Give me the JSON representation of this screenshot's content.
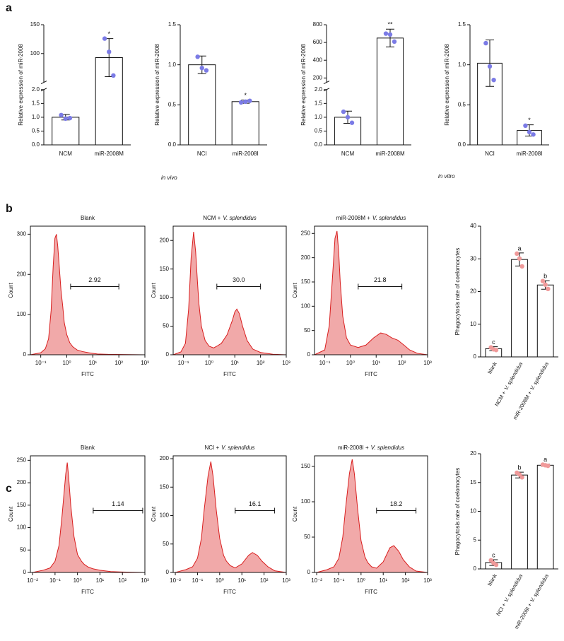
{
  "panel_labels": [
    "a",
    "b",
    "c"
  ],
  "condition_labels": [
    "in vivo",
    "in vitro"
  ],
  "chart_data": [
    {
      "type": "bar",
      "ylabel": "Relative expression of miR-2008",
      "categories": [
        "NCM",
        "miR-2008M"
      ],
      "values": [
        1.0,
        93
      ],
      "errors": [
        0.1,
        33
      ],
      "points": [
        [
          1.08,
          0.95,
          0.97
        ],
        [
          126,
          103,
          62
        ]
      ],
      "annotations": [
        null,
        "*"
      ],
      "ysegments": [
        {
          "ylim": [
            0,
            2
          ],
          "yticks": [
            {
              "value": 0,
              "label": "0.0"
            },
            0.5,
            {
              "value": 1,
              "label": "1.0"
            },
            1.5,
            {
              "value": 2,
              "label": "2.0"
            }
          ]
        },
        {
          "ylim": [
            50,
            150
          ],
          "yticks": [
            100,
            150
          ]
        }
      ],
      "bar_color": "#ffffff",
      "point_color": "#7b7be6"
    },
    {
      "type": "bar",
      "ylabel": "Relative expression of miR-2008",
      "categories": [
        "NCI",
        "miR-2008I"
      ],
      "values": [
        1.0,
        0.54
      ],
      "errors": [
        0.11,
        0.02
      ],
      "points": [
        [
          1.1,
          0.96,
          0.93
        ],
        [
          0.53,
          0.54,
          0.55
        ]
      ],
      "annotations": [
        null,
        "*"
      ],
      "ylim": [
        0,
        1.5
      ],
      "yticks": [
        {
          "value": 0,
          "label": "0.0"
        },
        0.5,
        {
          "value": 1,
          "label": "1.0"
        },
        1.5
      ],
      "bar_color": "#ffffff",
      "point_color": "#7b7be6"
    },
    {
      "type": "bar",
      "ylabel": "Relative expression of miR-2008",
      "categories": [
        "NCM",
        "miR-2008M"
      ],
      "values": [
        1.0,
        650
      ],
      "errors": [
        0.22,
        100
      ],
      "points": [
        [
          1.2,
          1.0,
          0.8
        ],
        [
          700,
          690,
          610
        ]
      ],
      "annotations": [
        null,
        "**"
      ],
      "ysegments": [
        {
          "ylim": [
            0,
            2
          ],
          "yticks": [
            {
              "value": 0,
              "label": "0.0"
            },
            0.5,
            {
              "value": 1,
              "label": "1.0"
            },
            1.5,
            {
              "value": 2,
              "label": "2.0"
            }
          ]
        },
        {
          "ylim": [
            150,
            800
          ],
          "yticks": [
            200,
            400,
            600,
            800
          ]
        }
      ],
      "bar_color": "#ffffff",
      "point_color": "#7b7be6"
    },
    {
      "type": "bar",
      "ylabel": "Relative expression of miR-2008",
      "categories": [
        "NCI",
        "miR-2008I"
      ],
      "values": [
        1.02,
        0.18
      ],
      "errors": [
        0.29,
        0.07
      ],
      "points": [
        [
          1.27,
          0.98,
          0.81
        ],
        [
          0.24,
          0.16,
          0.13
        ]
      ],
      "annotations": [
        null,
        "*"
      ],
      "ylim": [
        0,
        1.5
      ],
      "yticks": [
        {
          "value": 0,
          "label": "0.0"
        },
        0.5,
        {
          "value": 1,
          "label": "1.0"
        },
        1.5
      ],
      "bar_color": "#ffffff",
      "point_color": "#7b7be6"
    },
    {
      "type": "area",
      "title": [
        "Blank"
      ],
      "xlabel": "FITC",
      "ylabel": "Count",
      "xscale": "log",
      "xlim": [
        0.04,
        1000
      ],
      "xticks": [
        {
          "value": 0.1,
          "label": "10⁻¹"
        },
        {
          "value": 1,
          "label": "10⁰"
        },
        {
          "value": 10,
          "label": "10¹"
        },
        {
          "value": 100,
          "label": "10²"
        },
        {
          "value": 1000,
          "label": "10³"
        }
      ],
      "ylim": [
        0,
        320
      ],
      "yticks": [
        0,
        100,
        200,
        300
      ],
      "x": [
        0.04,
        0.1,
        0.15,
        0.2,
        0.25,
        0.3,
        0.35,
        0.4,
        0.45,
        0.5,
        0.6,
        0.7,
        0.8,
        1,
        1.3,
        1.7,
        2.5,
        4,
        7,
        15,
        40,
        1000
      ],
      "y": [
        0,
        5,
        15,
        40,
        110,
        220,
        290,
        300,
        270,
        230,
        160,
        120,
        80,
        50,
        30,
        20,
        12,
        8,
        5,
        2,
        1,
        0
      ],
      "gate": [
        1.4,
        100
      ],
      "gate_label": "2.92",
      "color": "#d91e1e",
      "fill": "#ef9a9a"
    },
    {
      "type": "area",
      "title": [
        "NCM +",
        "V. splendidus"
      ],
      "xlabel": "FITC",
      "ylabel": "Count",
      "xscale": "log",
      "xlim": [
        0.04,
        1000
      ],
      "xticks": [
        {
          "value": 0.1,
          "label": "10⁻¹"
        },
        {
          "value": 1,
          "label": "10⁰"
        },
        {
          "value": 10,
          "label": "10¹"
        },
        {
          "value": 100,
          "label": "10²"
        },
        {
          "value": 1000,
          "label": "10³"
        }
      ],
      "ylim": [
        0,
        225
      ],
      "yticks": [
        0,
        50,
        100,
        150,
        200
      ],
      "x": [
        0.04,
        0.08,
        0.12,
        0.16,
        0.2,
        0.25,
        0.3,
        0.35,
        0.4,
        0.5,
        0.7,
        1,
        1.5,
        2,
        3,
        5,
        8,
        10,
        12,
        15,
        20,
        30,
        50,
        100,
        300,
        1000
      ],
      "y": [
        0,
        5,
        20,
        80,
        170,
        215,
        180,
        130,
        90,
        50,
        25,
        15,
        12,
        15,
        20,
        35,
        60,
        75,
        80,
        72,
        50,
        25,
        10,
        4,
        1,
        0
      ],
      "gate": [
        2,
        100
      ],
      "gate_label": "30.0",
      "color": "#d91e1e",
      "fill": "#ef9a9a"
    },
    {
      "type": "area",
      "title": [
        "miR-2008M +",
        "V. splendidus"
      ],
      "xlabel": "FITC",
      "ylabel": "Count",
      "xscale": "log",
      "xlim": [
        0.04,
        1000
      ],
      "xticks": [
        {
          "value": 0.1,
          "label": "10⁻¹"
        },
        {
          "value": 1,
          "label": "10⁰"
        },
        {
          "value": 10,
          "label": "10¹"
        },
        {
          "value": 100,
          "label": "10²"
        },
        {
          "value": 1000,
          "label": "10³"
        }
      ],
      "ylim": [
        0,
        265
      ],
      "yticks": [
        0,
        50,
        100,
        150,
        200,
        250
      ],
      "x": [
        0.04,
        0.1,
        0.15,
        0.2,
        0.25,
        0.3,
        0.35,
        0.4,
        0.5,
        0.7,
        1,
        2,
        4,
        8,
        15,
        25,
        40,
        70,
        120,
        200,
        400,
        1000
      ],
      "y": [
        0,
        10,
        60,
        160,
        240,
        255,
        210,
        150,
        80,
        35,
        20,
        15,
        20,
        35,
        45,
        42,
        35,
        30,
        20,
        10,
        3,
        0
      ],
      "gate": [
        2,
        100
      ],
      "gate_label": "21.8",
      "color": "#d91e1e",
      "fill": "#ef9a9a"
    },
    {
      "type": "bar",
      "ylabel": "Phagocytosis rate of coelomocytes",
      "categories": [
        [
          "blank"
        ],
        [
          "NCM +",
          "V. splendidus"
        ],
        [
          "miR-2008M +",
          "V. splendidus"
        ]
      ],
      "values": [
        2.5,
        29.8,
        22.0
      ],
      "errors": [
        0.6,
        2.0,
        1.3
      ],
      "points": [
        [
          2.9,
          2.3,
          2.1
        ],
        [
          31.6,
          30.1,
          27.7
        ],
        [
          23.2,
          22.1,
          20.8
        ]
      ],
      "annotations": [
        "c",
        "a",
        "b"
      ],
      "ylim": [
        0,
        40
      ],
      "yticks": [
        0,
        10,
        20,
        30,
        40
      ],
      "bar_color": "#ffffff",
      "point_color": "#f09a9a"
    },
    {
      "type": "area",
      "title": [
        "Blank"
      ],
      "xlabel": "FITC",
      "ylabel": "Count",
      "xscale": "log",
      "xlim": [
        0.008,
        1000
      ],
      "xticks": [
        {
          "value": 0.01,
          "label": "10⁻²"
        },
        {
          "value": 0.1,
          "label": "10⁻¹"
        },
        {
          "value": 1,
          "label": "10⁰"
        },
        {
          "value": 10,
          "label": "10¹"
        },
        {
          "value": 100,
          "label": "10²"
        },
        {
          "value": 1000,
          "label": "10³"
        }
      ],
      "ylim": [
        0,
        260
      ],
      "yticks": [
        0,
        50,
        100,
        150,
        200,
        250
      ],
      "x": [
        0.01,
        0.03,
        0.06,
        0.1,
        0.15,
        0.2,
        0.3,
        0.35,
        0.4,
        0.5,
        0.7,
        1,
        1.5,
        2,
        3,
        5,
        10,
        30,
        100,
        1000
      ],
      "y": [
        0,
        5,
        10,
        25,
        60,
        120,
        220,
        245,
        215,
        150,
        80,
        40,
        25,
        18,
        12,
        8,
        5,
        2,
        1,
        0
      ],
      "gate": [
        5,
        800
      ],
      "gate_label": "1.14",
      "color": "#d91e1e",
      "fill": "#ef9a9a"
    },
    {
      "type": "area",
      "title": [
        "NCI +",
        "V. splendidus"
      ],
      "xlabel": "FITC",
      "ylabel": "Count",
      "xscale": "log",
      "xlim": [
        0.008,
        1000
      ],
      "xticks": [
        {
          "value": 0.01,
          "label": "10⁻²"
        },
        {
          "value": 0.1,
          "label": "10⁻¹"
        },
        {
          "value": 1,
          "label": "10⁰"
        },
        {
          "value": 10,
          "label": "10¹"
        },
        {
          "value": 100,
          "label": "10²"
        },
        {
          "value": 1000,
          "label": "10³"
        }
      ],
      "ylim": [
        0,
        205
      ],
      "yticks": [
        0,
        50,
        100,
        150,
        200
      ],
      "x": [
        0.01,
        0.03,
        0.06,
        0.1,
        0.15,
        0.2,
        0.3,
        0.4,
        0.5,
        0.7,
        1,
        1.5,
        2,
        3,
        5,
        10,
        20,
        30,
        50,
        80,
        150,
        300,
        1000
      ],
      "y": [
        0,
        5,
        10,
        25,
        60,
        110,
        170,
        195,
        170,
        110,
        60,
        30,
        20,
        12,
        8,
        15,
        30,
        35,
        30,
        20,
        10,
        3,
        0
      ],
      "gate": [
        5,
        300
      ],
      "gate_label": "16.1",
      "color": "#d91e1e",
      "fill": "#ef9a9a"
    },
    {
      "type": "area",
      "title": [
        "miR-2008I +",
        "V. splendidus"
      ],
      "xlabel": "FITC",
      "ylabel": "Count",
      "xscale": "log",
      "xlim": [
        0.008,
        1000
      ],
      "xticks": [
        {
          "value": 0.01,
          "label": "10⁻²"
        },
        {
          "value": 0.1,
          "label": "10⁻¹"
        },
        {
          "value": 1,
          "label": "10⁰"
        },
        {
          "value": 10,
          "label": "10¹"
        },
        {
          "value": 100,
          "label": "10²"
        },
        {
          "value": 1000,
          "label": "10³"
        }
      ],
      "ylim": [
        0,
        165
      ],
      "yticks": [
        0,
        50,
        100,
        150
      ],
      "x": [
        0.01,
        0.03,
        0.06,
        0.1,
        0.15,
        0.2,
        0.3,
        0.4,
        0.5,
        0.7,
        1,
        1.5,
        2,
        3,
        5,
        10,
        20,
        30,
        50,
        80,
        150,
        300,
        1000
      ],
      "y": [
        0,
        4,
        8,
        20,
        50,
        90,
        140,
        160,
        140,
        90,
        45,
        22,
        14,
        8,
        6,
        15,
        35,
        38,
        30,
        18,
        8,
        2,
        0
      ],
      "gate": [
        5,
        300
      ],
      "gate_label": "18.2",
      "color": "#d91e1e",
      "fill": "#ef9a9a"
    },
    {
      "type": "bar",
      "ylabel": "Phagocytosis rate of coelomocytes",
      "categories": [
        [
          "blank"
        ],
        [
          "NCI +",
          "V. splendidus"
        ],
        [
          "miR-2008I +",
          "V. splendidus"
        ]
      ],
      "values": [
        1.1,
        16.3,
        18.0
      ],
      "errors": [
        0.5,
        0.5,
        0.2
      ],
      "points": [
        [
          1.5,
          1.0,
          0.7
        ],
        [
          16.7,
          16.4,
          15.9
        ],
        [
          18.1,
          18.0,
          17.9
        ]
      ],
      "annotations": [
        "c",
        "b",
        "a"
      ],
      "ylim": [
        0,
        20
      ],
      "yticks": [
        0,
        5,
        10,
        15,
        20
      ],
      "bar_color": "#ffffff",
      "point_color": "#f09a9a"
    }
  ]
}
